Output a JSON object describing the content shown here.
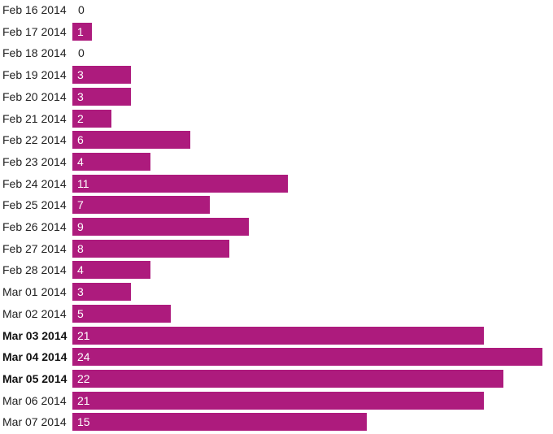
{
  "chart_data": {
    "type": "bar",
    "orientation": "horizontal",
    "categories": [
      "Feb 16 2014",
      "Feb 17 2014",
      "Feb 18 2014",
      "Feb 19 2014",
      "Feb 20 2014",
      "Feb 21 2014",
      "Feb 22 2014",
      "Feb 23 2014",
      "Feb 24 2014",
      "Feb 25 2014",
      "Feb 26 2014",
      "Feb 27 2014",
      "Feb 28 2014",
      "Mar 01 2014",
      "Mar 02 2014",
      "Mar 03 2014",
      "Mar 04 2014",
      "Mar 05 2014",
      "Mar 06 2014",
      "Mar 07 2014"
    ],
    "values": [
      0,
      1,
      0,
      3,
      3,
      2,
      6,
      4,
      11,
      7,
      9,
      8,
      4,
      3,
      5,
      21,
      24,
      22,
      21,
      15
    ],
    "highlighted": [
      "Mar 03 2014",
      "Mar 04 2014",
      "Mar 05 2014"
    ],
    "xlim": [
      0,
      24
    ],
    "bar_color": "#ad1b7d",
    "label_color_inside": "#ffffff",
    "label_color_outside": "#222222",
    "grid": false,
    "legend": "none",
    "data_labels": true
  }
}
